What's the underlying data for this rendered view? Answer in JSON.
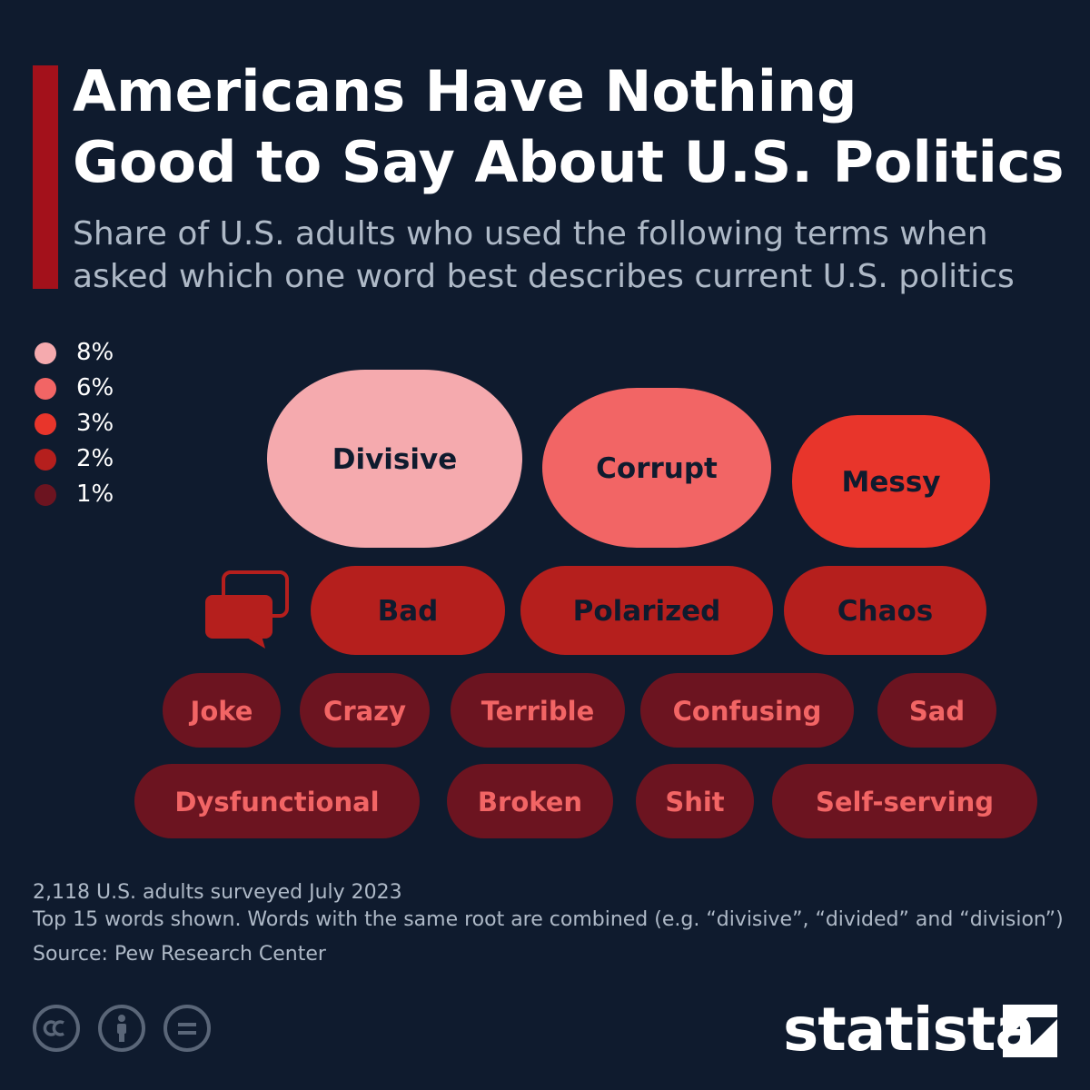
{
  "title": {
    "line1": "Americans Have Nothing",
    "line2": "Good to Say About U.S. Politics"
  },
  "subtitle": {
    "line1": "Share of U.S. adults who used the following terms when",
    "line2": "asked which one word best describes current U.S. politics"
  },
  "colors": {
    "background": "#0f1b2e",
    "accent": "#a3111b",
    "pct8": "#f5aaae",
    "pct6": "#f26565",
    "pct3": "#e8352b",
    "pct2": "#b51f1d",
    "pct1": "#6c1420",
    "dark_text": "#0f1b2e",
    "light_text": "#f26565"
  },
  "legend": [
    {
      "label": "8%",
      "value": 8,
      "color": "#f5aaae"
    },
    {
      "label": "6%",
      "value": 6,
      "color": "#f26565"
    },
    {
      "label": "3%",
      "value": 3,
      "color": "#e8352b"
    },
    {
      "label": "2%",
      "value": 2,
      "color": "#b51f1d"
    },
    {
      "label": "1%",
      "value": 1,
      "color": "#6c1420"
    }
  ],
  "chart_data": {
    "type": "bubble-word-cloud",
    "title": "Americans Have Nothing Good to Say About U.S. Politics",
    "unit": "% of U.S. adults",
    "words": [
      {
        "word": "Divisive",
        "value": 8
      },
      {
        "word": "Corrupt",
        "value": 6
      },
      {
        "word": "Messy",
        "value": 3
      },
      {
        "word": "Bad",
        "value": 2
      },
      {
        "word": "Polarized",
        "value": 2
      },
      {
        "word": "Chaos",
        "value": 2
      },
      {
        "word": "Joke",
        "value": 1
      },
      {
        "word": "Crazy",
        "value": 1
      },
      {
        "word": "Terrible",
        "value": 1
      },
      {
        "word": "Confusing",
        "value": 1
      },
      {
        "word": "Sad",
        "value": 1
      },
      {
        "word": "Dysfunctional",
        "value": 1
      },
      {
        "word": "Broken",
        "value": 1
      },
      {
        "word": "Shit",
        "value": 1
      },
      {
        "word": "Self-serving",
        "value": 1
      }
    ]
  },
  "footer": {
    "note1": "2,118 U.S. adults surveyed July 2023",
    "note2": "Top 15 words shown. Words with the same root are combined (e.g. “divisive”, “divided” and “division”)",
    "source": "Source: Pew Research Center"
  },
  "license_icons": [
    "cc-icon",
    "attribution-icon",
    "no-derivatives-icon"
  ],
  "brand": "statista"
}
